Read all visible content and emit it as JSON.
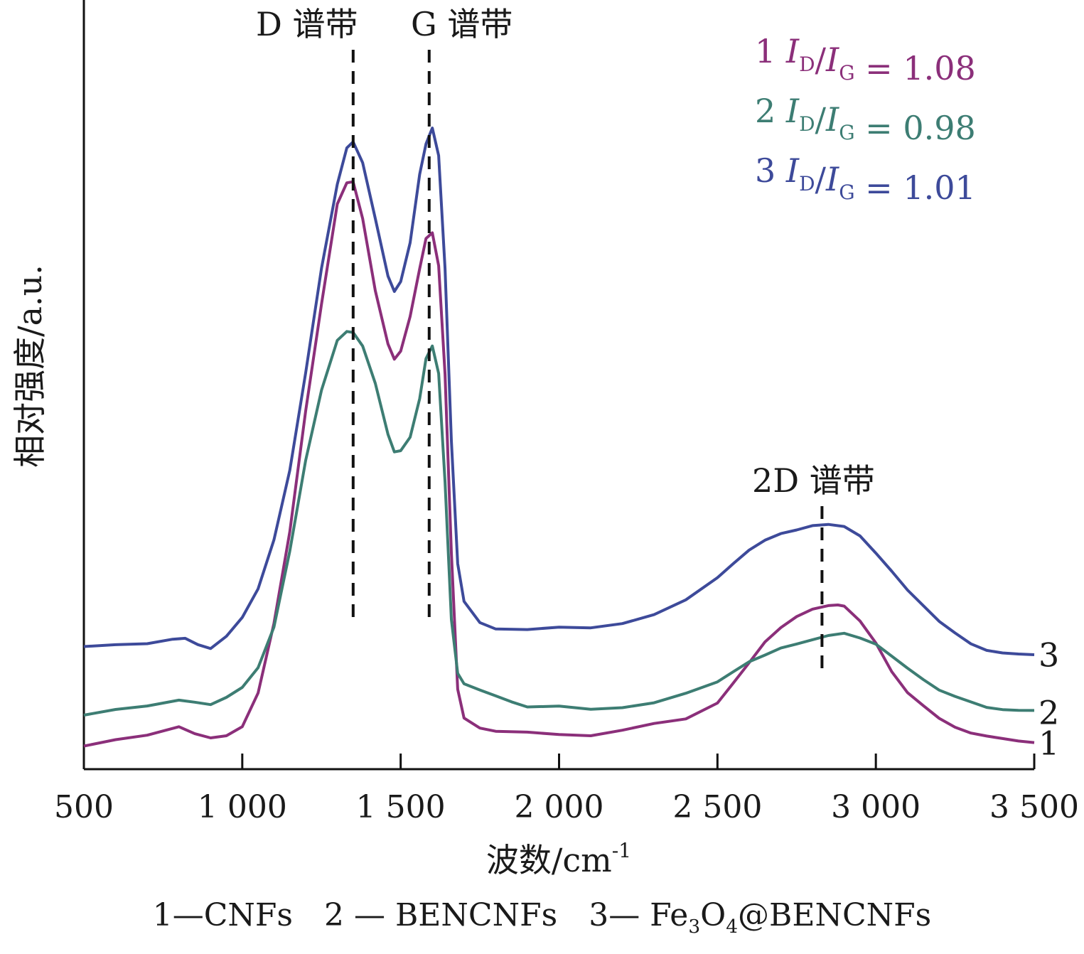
{
  "chart_data": {
    "type": "line",
    "xlabel": "波数/cm",
    "xlabel_sup": "-1",
    "ylabel": "相对强度/a.u.",
    "xlim": [
      500,
      3500
    ],
    "xticks": [
      500,
      1000,
      1500,
      2000,
      2500,
      3000,
      3500
    ],
    "xtick_labels": [
      "500",
      "1 000",
      "1 500",
      "2 000",
      "2 500",
      "3 000",
      "3 500"
    ],
    "yticks": [],
    "ylim": [
      0,
      1.0
    ],
    "grid": false,
    "bands": [
      {
        "label": "D 谱带",
        "x": 1350
      },
      {
        "label": "G 谱带",
        "x": 1590
      },
      {
        "label": "2D 谱带",
        "x": 2830
      }
    ],
    "ratios": [
      {
        "prefix": "1",
        "value": "1.08",
        "color": "#8b2f7a"
      },
      {
        "prefix": "2",
        "value": "0.98",
        "color": "#3d7d73"
      },
      {
        "prefix": "3",
        "value": "1.01",
        "color": "#3d4a9a"
      }
    ],
    "ratio_symbol": {
      "I": "I",
      "D": "D",
      "G": "G",
      "eq": "="
    },
    "series": [
      {
        "end_label": "1",
        "color": "#8b2f7a",
        "x": [
          500,
          600,
          700,
          800,
          850,
          900,
          950,
          1000,
          1050,
          1100,
          1150,
          1200,
          1250,
          1300,
          1330,
          1350,
          1380,
          1420,
          1460,
          1480,
          1500,
          1530,
          1560,
          1580,
          1600,
          1620,
          1640,
          1660,
          1680,
          1700,
          1750,
          1800,
          1900,
          2000,
          2100,
          2200,
          2300,
          2400,
          2500,
          2550,
          2600,
          2650,
          2700,
          2750,
          2800,
          2850,
          2880,
          2900,
          2950,
          3000,
          3050,
          3100,
          3150,
          3200,
          3250,
          3300,
          3350,
          3400,
          3450,
          3500
        ],
        "y": [
          0.02,
          0.03,
          0.035,
          0.045,
          0.035,
          0.03,
          0.035,
          0.05,
          0.1,
          0.2,
          0.33,
          0.5,
          0.65,
          0.79,
          0.82,
          0.82,
          0.77,
          0.67,
          0.59,
          0.57,
          0.58,
          0.63,
          0.7,
          0.74,
          0.75,
          0.7,
          0.55,
          0.3,
          0.1,
          0.06,
          0.045,
          0.04,
          0.04,
          0.04,
          0.04,
          0.045,
          0.05,
          0.055,
          0.08,
          0.11,
          0.14,
          0.17,
          0.19,
          0.205,
          0.215,
          0.22,
          0.225,
          0.22,
          0.2,
          0.17,
          0.13,
          0.1,
          0.08,
          0.06,
          0.045,
          0.035,
          0.03,
          0.027,
          0.025,
          0.025
        ]
      },
      {
        "end_label": "2",
        "color": "#3d7d73",
        "x": [
          500,
          600,
          700,
          800,
          850,
          900,
          950,
          1000,
          1050,
          1100,
          1150,
          1200,
          1250,
          1300,
          1330,
          1350,
          1380,
          1420,
          1460,
          1480,
          1500,
          1530,
          1560,
          1580,
          1600,
          1620,
          1640,
          1660,
          1680,
          1700,
          1750,
          1800,
          1850,
          1900,
          2000,
          2100,
          2200,
          2300,
          2400,
          2500,
          2550,
          2600,
          2650,
          2700,
          2750,
          2800,
          2850,
          2900,
          2950,
          3000,
          3050,
          3100,
          3150,
          3200,
          3250,
          3300,
          3350,
          3400,
          3450,
          3500
        ],
        "y": [
          0.065,
          0.075,
          0.08,
          0.085,
          0.08,
          0.075,
          0.085,
          0.1,
          0.13,
          0.19,
          0.3,
          0.43,
          0.53,
          0.6,
          0.61,
          0.61,
          0.59,
          0.54,
          0.46,
          0.44,
          0.44,
          0.46,
          0.51,
          0.57,
          0.59,
          0.55,
          0.4,
          0.2,
          0.12,
          0.11,
          0.1,
          0.09,
          0.08,
          0.072,
          0.075,
          0.075,
          0.08,
          0.085,
          0.095,
          0.11,
          0.125,
          0.14,
          0.15,
          0.16,
          0.165,
          0.17,
          0.175,
          0.178,
          0.172,
          0.165,
          0.15,
          0.135,
          0.12,
          0.105,
          0.095,
          0.085,
          0.075,
          0.07,
          0.068,
          0.068
        ]
      },
      {
        "end_label": "3",
        "color": "#3d4a9a",
        "x": [
          500,
          600,
          700,
          780,
          820,
          860,
          900,
          950,
          1000,
          1050,
          1100,
          1150,
          1200,
          1250,
          1300,
          1330,
          1350,
          1380,
          1420,
          1460,
          1480,
          1500,
          1530,
          1560,
          1580,
          1600,
          1620,
          1640,
          1660,
          1680,
          1700,
          1750,
          1800,
          1900,
          2000,
          2100,
          2200,
          2300,
          2400,
          2500,
          2550,
          2600,
          2650,
          2700,
          2750,
          2800,
          2850,
          2900,
          2950,
          3000,
          3050,
          3100,
          3150,
          3200,
          3250,
          3300,
          3350,
          3400,
          3450,
          3500
        ],
        "y": [
          0.16,
          0.165,
          0.17,
          0.17,
          0.175,
          0.165,
          0.16,
          0.175,
          0.2,
          0.24,
          0.31,
          0.41,
          0.55,
          0.7,
          0.82,
          0.87,
          0.88,
          0.85,
          0.77,
          0.69,
          0.67,
          0.68,
          0.74,
          0.83,
          0.88,
          0.9,
          0.86,
          0.7,
          0.45,
          0.28,
          0.23,
          0.2,
          0.19,
          0.185,
          0.185,
          0.185,
          0.195,
          0.21,
          0.23,
          0.26,
          0.28,
          0.3,
          0.315,
          0.325,
          0.33,
          0.335,
          0.335,
          0.33,
          0.315,
          0.29,
          0.265,
          0.24,
          0.22,
          0.2,
          0.185,
          0.17,
          0.16,
          0.155,
          0.152,
          0.15
        ]
      }
    ]
  },
  "legend": {
    "item1": "1—CNFs",
    "item2": "2 — BENCNFs",
    "item3_pre": "3— Fe",
    "item3_sub1": "3",
    "item3_mid": "O",
    "item3_sub2": "4",
    "item3_post": "@BENCNFs"
  }
}
